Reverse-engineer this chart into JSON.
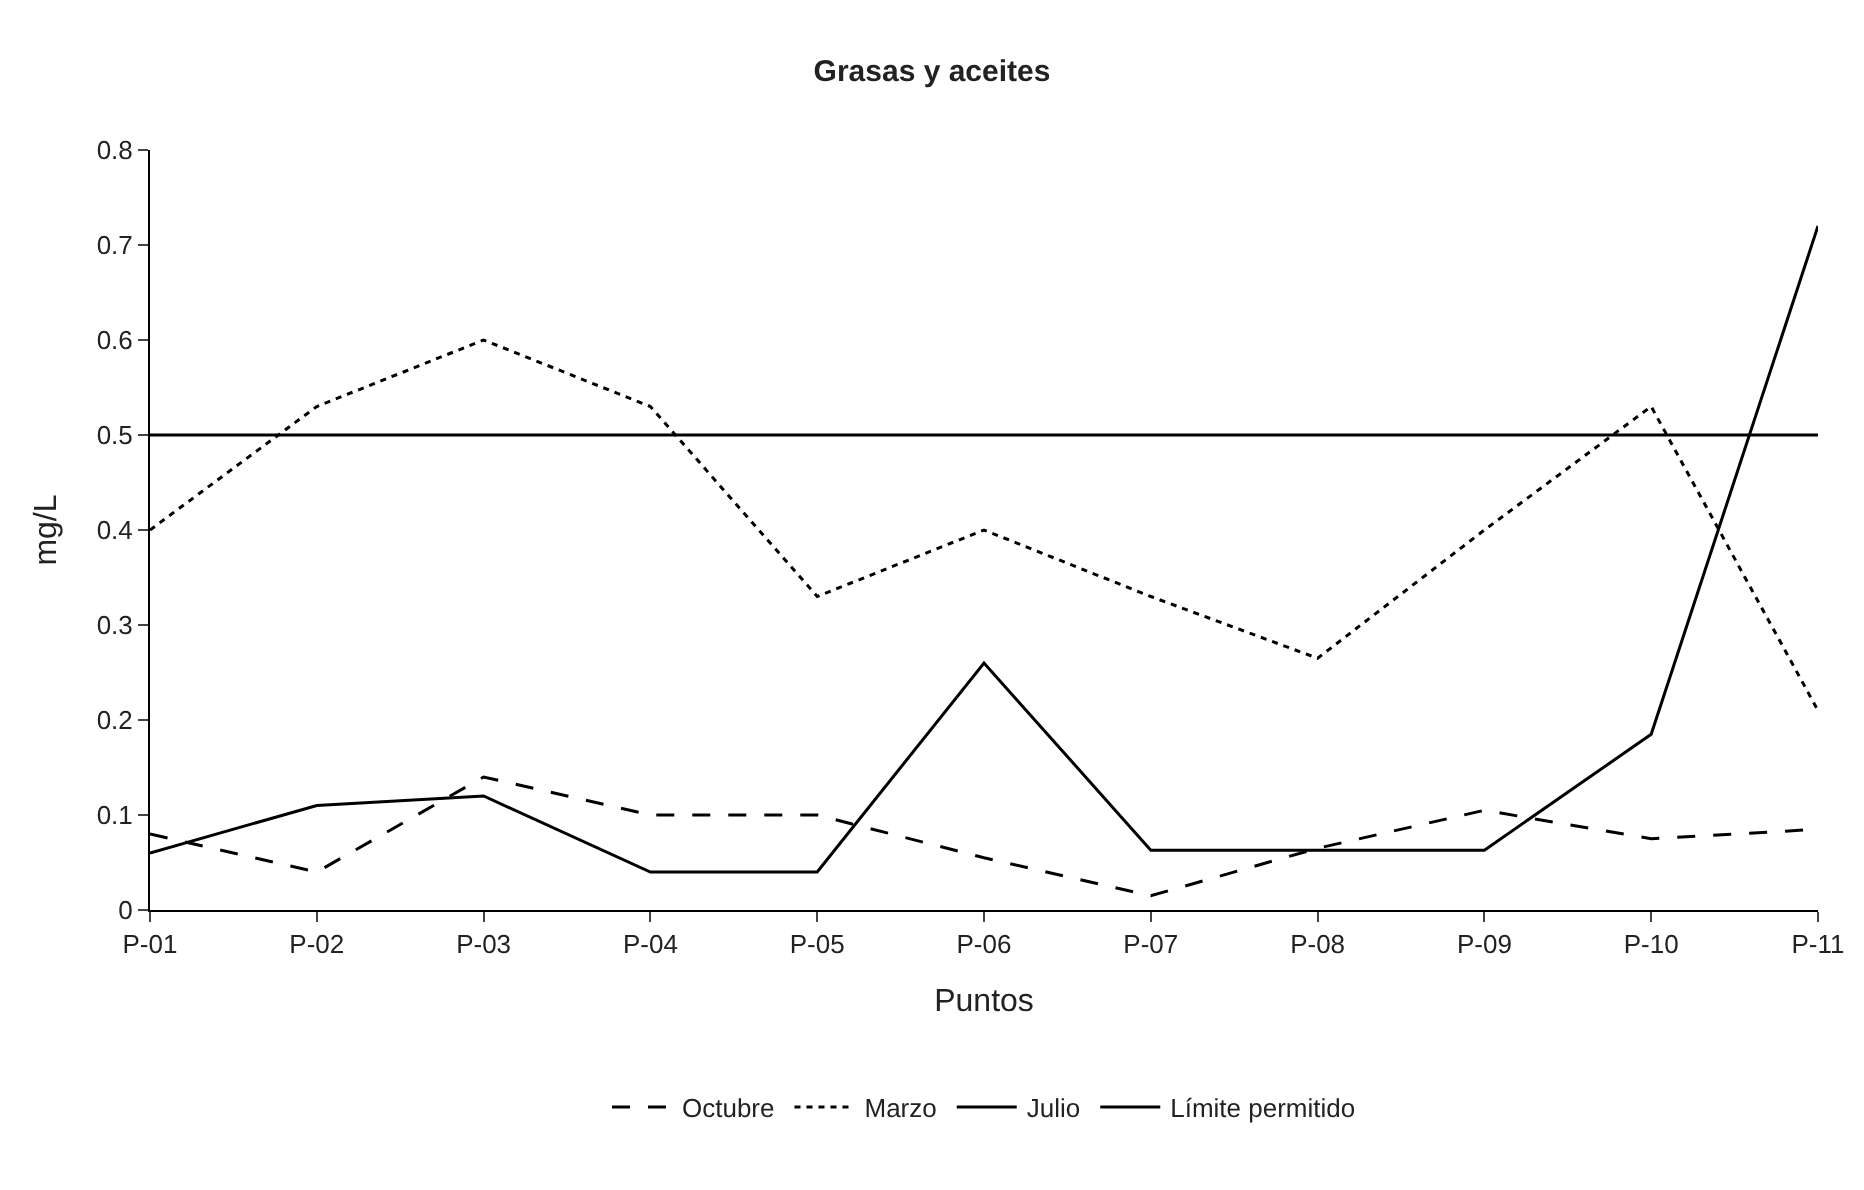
{
  "chart_data": {
    "type": "line",
    "title": "Grasas y aceites",
    "xlabel": "Puntos",
    "ylabel": "mg/L",
    "categories": [
      "P-01",
      "P-02",
      "P-03",
      "P-04",
      "P-05",
      "P-06",
      "P-07",
      "P-08",
      "P-09",
      "P-10",
      "P-11"
    ],
    "series": [
      {
        "name": "Octubre",
        "color": "#000000",
        "line_style": "dashed",
        "values": [
          0.08,
          0.04,
          0.14,
          0.1,
          0.1,
          0.055,
          0.015,
          0.065,
          0.105,
          0.075,
          0.085
        ]
      },
      {
        "name": "Marzo",
        "color": "#000000",
        "line_style": "dotted",
        "values": [
          0.4,
          0.53,
          0.6,
          0.53,
          0.33,
          0.4,
          0.33,
          0.265,
          0.4,
          0.53,
          0.21
        ]
      },
      {
        "name": "Julio",
        "color": "#000000",
        "line_style": "solid",
        "values": [
          0.06,
          0.11,
          0.12,
          0.04,
          0.04,
          0.26,
          0.063,
          0.063,
          0.063,
          0.185,
          0.72
        ]
      },
      {
        "name": "Límite permitido",
        "color": "#000000",
        "line_style": "solid",
        "values": [
          0.5,
          0.5,
          0.5,
          0.5,
          0.5,
          0.5,
          0.5,
          0.5,
          0.5,
          0.5,
          0.5
        ]
      }
    ],
    "ylim": [
      0,
      0.8
    ],
    "yticks": [
      0,
      0.1,
      0.2,
      0.3,
      0.4,
      0.5,
      0.6,
      0.7,
      0.8
    ],
    "grid": false,
    "legend": "bottom",
    "marker": "none"
  }
}
